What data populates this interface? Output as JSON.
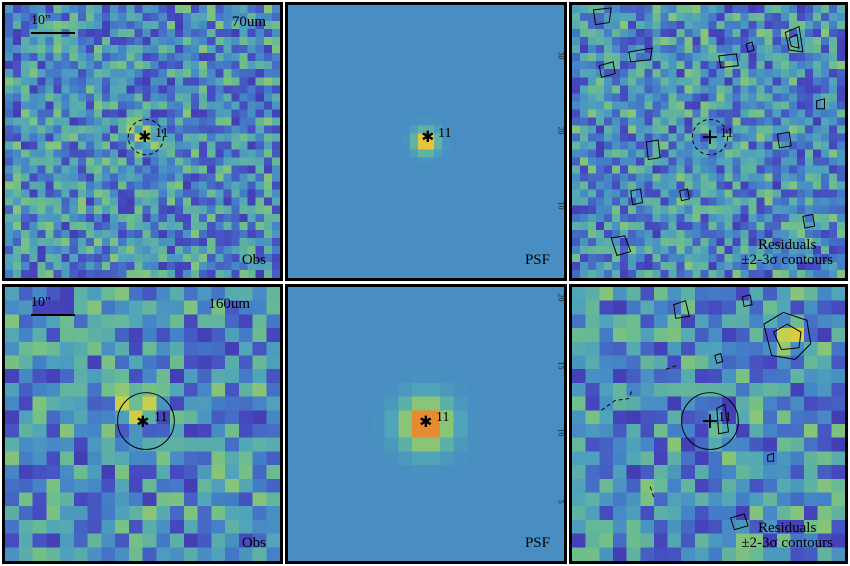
{
  "scale_bar_label": "10\"",
  "source_label": "11",
  "rows": [
    {
      "band": "70um",
      "panels": [
        {
          "id": "obs-70",
          "label": "Obs",
          "palette": "noise",
          "seed": 7
        },
        {
          "id": "psf-70",
          "label": "PSF",
          "palette": "psf"
        },
        {
          "id": "res-70",
          "label": "Residuals",
          "sublabel": "±2-3σ contours",
          "palette": "noise",
          "seed": 19
        }
      ],
      "y_ticks": [
        "30",
        "20",
        "10"
      ]
    },
    {
      "band": "160um",
      "panels": [
        {
          "id": "obs-160",
          "label": "Obs",
          "palette": "noise",
          "seed": 31
        },
        {
          "id": "psf-160",
          "label": "PSF",
          "palette": "psf"
        },
        {
          "id": "res-160",
          "label": "Residuals",
          "sublabel": "±2-3σ contours",
          "palette": "noise",
          "seed": 43
        }
      ],
      "y_ticks": [
        "20",
        "15",
        "10",
        "5"
      ]
    }
  ],
  "colors": {
    "background": "#4f8fbf",
    "peak": "#e8402a",
    "high": "#e0d040",
    "low": "#3a1a8a"
  }
}
